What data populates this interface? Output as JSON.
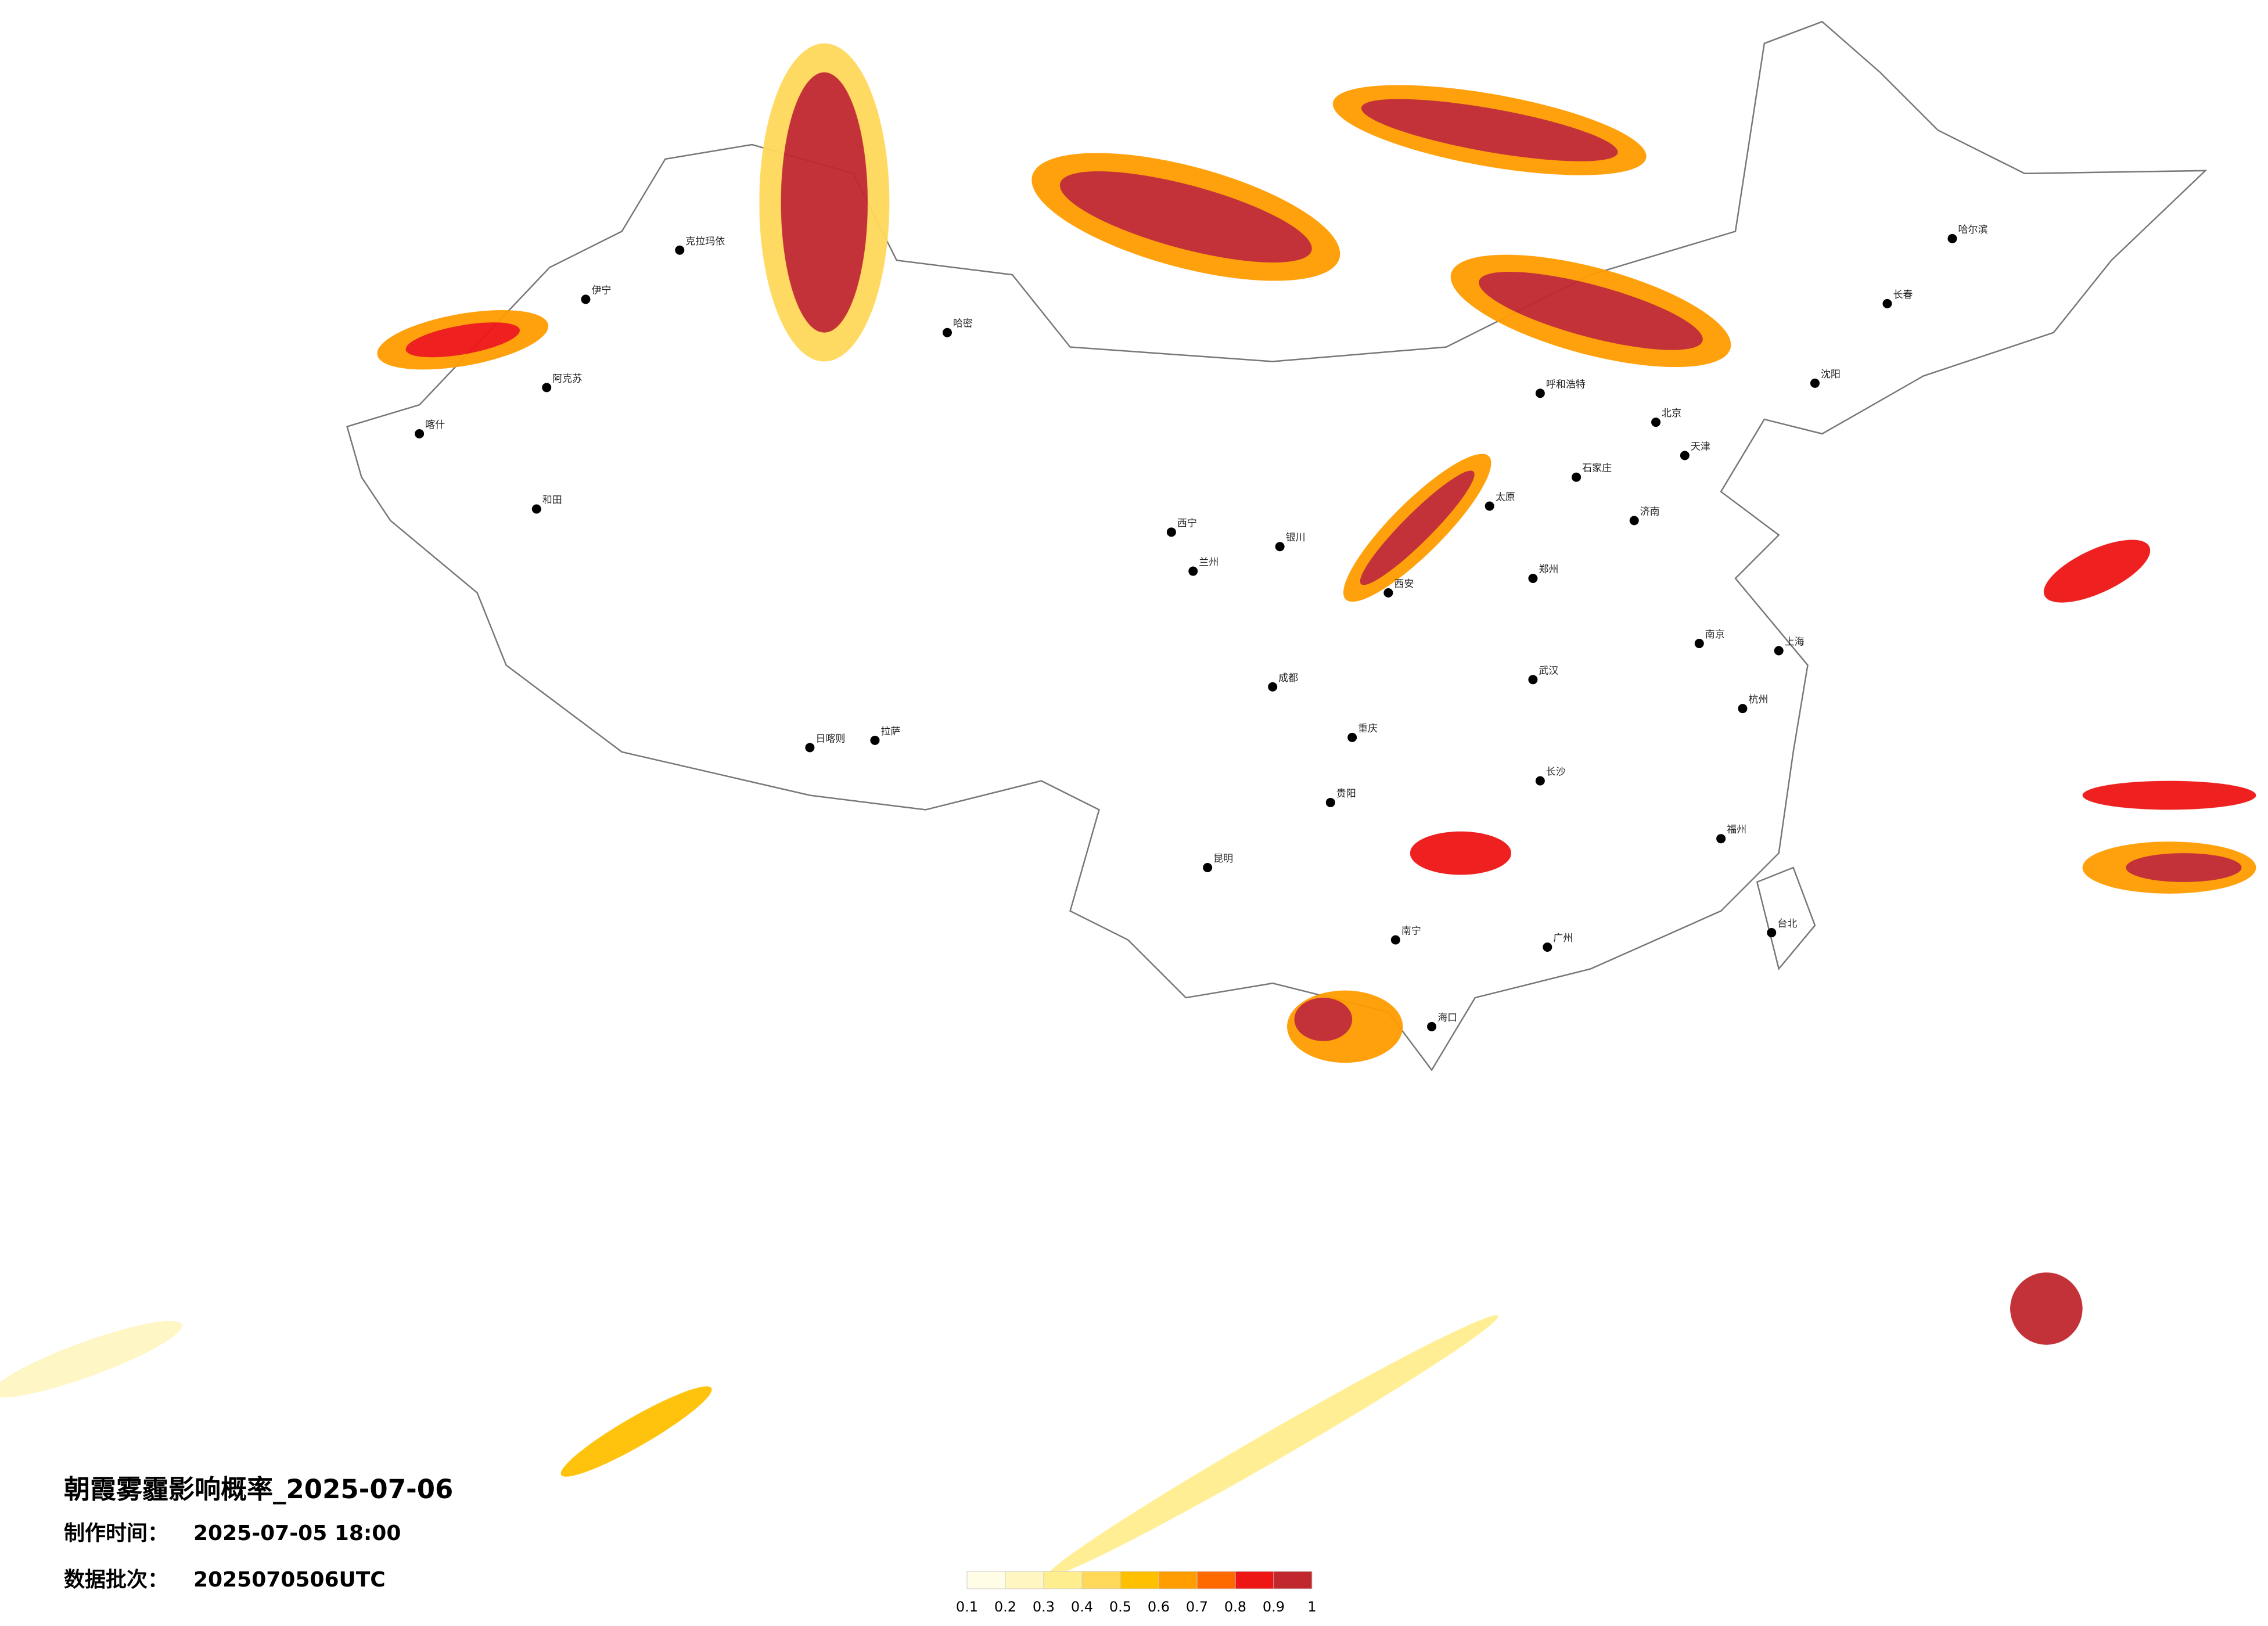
{
  "header": {
    "title": "朝霞雾霾影响概率_2025-07-06",
    "made_label": "制作时间：",
    "made_time": "2025-07-05 18:00",
    "batch_label": "数据批次：",
    "batch": "2025070506UTC"
  },
  "legend": {
    "ticks": [
      "0.1",
      "0.2",
      "0.3",
      "0.4",
      "0.5",
      "0.6",
      "0.7",
      "0.8",
      "0.9",
      "1"
    ],
    "colors": [
      "#fffde6",
      "#fff6c2",
      "#ffee8e",
      "#ffd85a",
      "#ffc000",
      "#ff9c00",
      "#ff6a00",
      "#ee1515",
      "#c0282e"
    ]
  },
  "cities": [
    "克拉玛依",
    "伊宁",
    "阿克苏",
    "和田",
    "喀什",
    "哈密",
    "拉萨",
    "日喀则",
    "西宁",
    "兰州",
    "银川",
    "呼和浩特",
    "北京",
    "天津",
    "石家庄",
    "太原",
    "济南",
    "郑州",
    "西安",
    "成都",
    "重庆",
    "武汉",
    "长沙",
    "南京",
    "上海",
    "杭州",
    "福州",
    "广州",
    "南宁",
    "昆明",
    "贵阳",
    "哈尔滨",
    "长春",
    "沈阳",
    "台北",
    "海口"
  ]
}
